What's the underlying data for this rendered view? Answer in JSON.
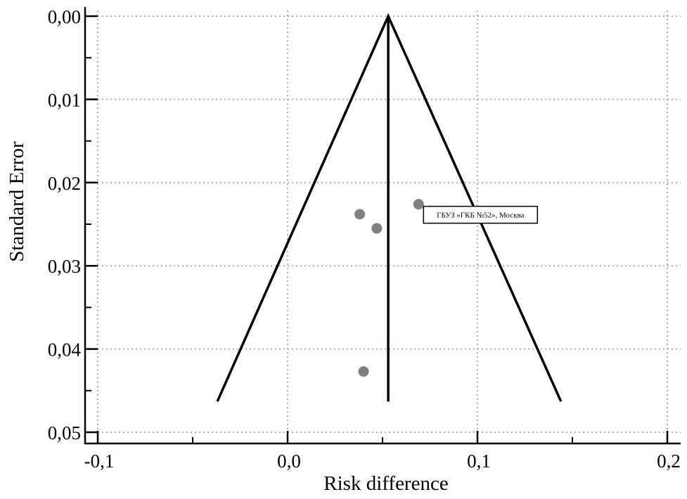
{
  "chart_data": {
    "type": "scatter",
    "subtype": "funnel",
    "title": "",
    "xlabel": "Risk difference",
    "ylabel": "Standard Error",
    "xlim": [
      -0.1,
      0.2
    ],
    "ylim": [
      0.0,
      0.05
    ],
    "y_inverted": true,
    "x_ticks": [
      "-0,1",
      "0,0",
      "0,1",
      "0,2"
    ],
    "x_tick_values": [
      -0.1,
      0.0,
      0.1,
      0.2
    ],
    "y_ticks": [
      "0,00",
      "0,01",
      "0,02",
      "0,03",
      "0,04",
      "0,05"
    ],
    "y_tick_values": [
      0.0,
      0.01,
      0.02,
      0.03,
      0.04,
      0.05
    ],
    "grid": true,
    "points": [
      {
        "x": 0.069,
        "y": 0.0226,
        "label": "ГБУЗ «ГКБ №52», Москва"
      },
      {
        "x": 0.038,
        "y": 0.0238
      },
      {
        "x": 0.047,
        "y": 0.0255
      },
      {
        "x": 0.04,
        "y": 0.0427
      }
    ],
    "pooled_estimate": 0.053,
    "funnel": {
      "apex": [
        0.053,
        0.0
      ],
      "left_bottom": [
        -0.037,
        0.0463
      ],
      "right_bottom": [
        0.144,
        0.0463
      ]
    },
    "colors": {
      "points": "#808080",
      "lines": "#000000",
      "grid": "#b0b0b0"
    }
  }
}
